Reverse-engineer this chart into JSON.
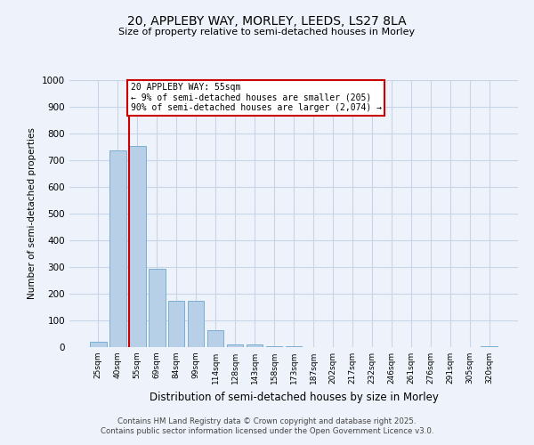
{
  "title1": "20, APPLEBY WAY, MORLEY, LEEDS, LS27 8LA",
  "title2": "Size of property relative to semi-detached houses in Morley",
  "xlabel": "Distribution of semi-detached houses by size in Morley",
  "ylabel": "Number of semi-detached properties",
  "categories": [
    "25sqm",
    "40sqm",
    "55sqm",
    "69sqm",
    "84sqm",
    "99sqm",
    "114sqm",
    "128sqm",
    "143sqm",
    "158sqm",
    "173sqm",
    "187sqm",
    "202sqm",
    "217sqm",
    "232sqm",
    "246sqm",
    "261sqm",
    "276sqm",
    "291sqm",
    "305sqm",
    "320sqm"
  ],
  "values": [
    20,
    738,
    755,
    293,
    172,
    172,
    65,
    10,
    10,
    5,
    5,
    0,
    0,
    0,
    0,
    0,
    0,
    0,
    0,
    0,
    5
  ],
  "bar_color": "#b8cfe8",
  "bar_edge_color": "#7aaed4",
  "highlight_line_color": "#cc0000",
  "annotation_text": "20 APPLEBY WAY: 55sqm\n← 9% of semi-detached houses are smaller (205)\n90% of semi-detached houses are larger (2,074) →",
  "annotation_box_color": "#cc0000",
  "ylim": [
    0,
    1000
  ],
  "yticks": [
    0,
    100,
    200,
    300,
    400,
    500,
    600,
    700,
    800,
    900,
    1000
  ],
  "background_color": "#eef2fa",
  "grid_color": "#c8d4e8",
  "footer1": "Contains HM Land Registry data © Crown copyright and database right 2025.",
  "footer2": "Contains public sector information licensed under the Open Government Licence v3.0."
}
